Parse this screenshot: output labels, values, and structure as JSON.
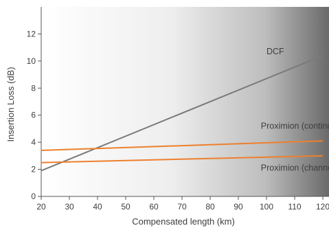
{
  "chart_data": {
    "type": "line",
    "title": "",
    "xlabel": "Compensated length (km)",
    "ylabel": "Insertion Loss (dB)",
    "xlim": [
      20,
      120
    ],
    "ylim": [
      0,
      14
    ],
    "xticks": [
      20,
      30,
      40,
      50,
      60,
      70,
      80,
      90,
      100,
      110,
      120
    ],
    "yticks": [
      0,
      2,
      4,
      6,
      8,
      10,
      12
    ],
    "grid": false,
    "background": "white-to-dark-grey horizontal gradient",
    "series": [
      {
        "name": "DCF",
        "color": "#7a7a7a",
        "x": [
          20,
          120
        ],
        "y": [
          1.9,
          10.4
        ]
      },
      {
        "name": "Proximion (continuous)",
        "color": "#ee7f2d",
        "x": [
          20,
          120
        ],
        "y": [
          3.4,
          4.1
        ]
      },
      {
        "name": "Proximion (channelized)",
        "color": "#ee7f2d",
        "x": [
          20,
          120
        ],
        "y": [
          2.5,
          3.0
        ]
      }
    ],
    "annotations": [
      {
        "text": "DCF",
        "series": 0,
        "x": 100,
        "y": 10.5
      },
      {
        "text": "Proximion (continuous)",
        "series": 1,
        "x": 98,
        "y": 5.0
      },
      {
        "text": "Proximion (channelized)",
        "series": 2,
        "x": 98,
        "y": 1.9
      }
    ]
  }
}
